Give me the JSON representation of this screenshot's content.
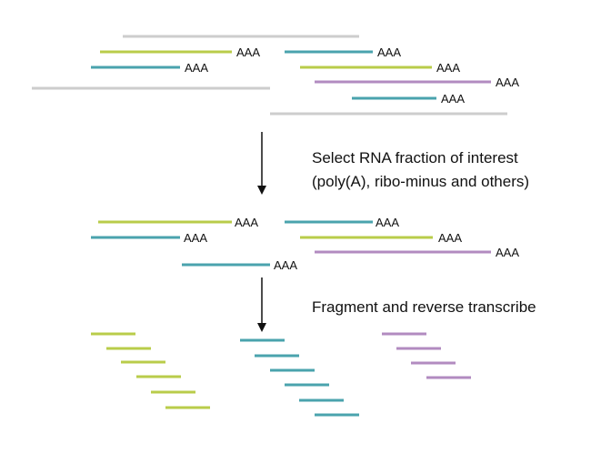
{
  "colors": {
    "gray": "#cdcdcd",
    "green": "#b9cc4a",
    "teal": "#4aa3ad",
    "purple": "#b28bc0",
    "arrow": "#111111"
  },
  "poly_a_label": "AAA",
  "steps": {
    "select_line1": "Select RNA fraction of interest",
    "select_line2": "(poly(A), ribo-minus and others)",
    "fragment": "Fragment and reverse transcribe"
  }
}
